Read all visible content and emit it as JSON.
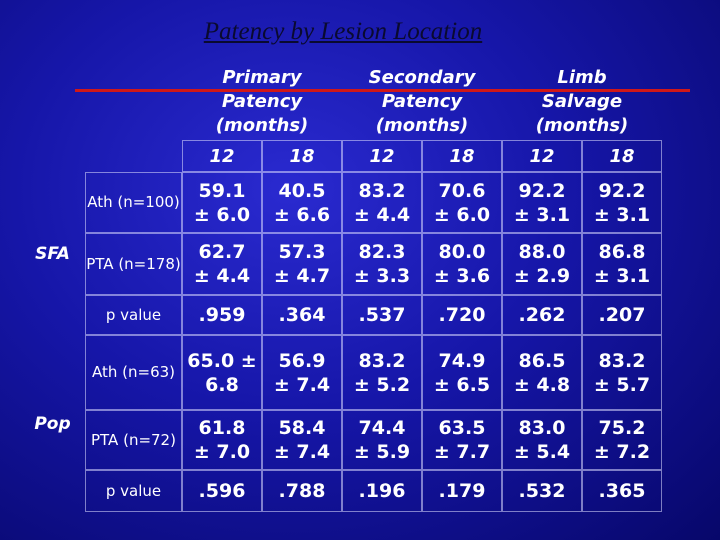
{
  "title": "Patency by Lesion Location",
  "table": {
    "group_headers": [
      "Primary Patency (months)",
      "Secondary Patency (months)",
      "Limb Salvage (months)"
    ],
    "sub_headers": [
      "12",
      "18",
      "12",
      "18",
      "12",
      "18"
    ],
    "sections": [
      {
        "label": "SFA",
        "rows": [
          {
            "label": "Ath (n=100)",
            "cells": [
              "59.1 ± 6.0",
              "40.5 ± 6.6",
              "83.2 ± 4.4",
              "70.6 ± 6.0",
              "92.2 ± 3.1",
              "92.2 ± 3.1"
            ]
          },
          {
            "label": "PTA (n=178)",
            "cells": [
              "62.7 ± 4.4",
              "57.3 ± 4.7",
              "82.3 ± 3.3",
              "80.0 ± 3.6",
              "88.0 ± 2.9",
              "86.8 ± 3.1"
            ]
          },
          {
            "label": "p value",
            "cells": [
              ".959",
              ".364",
              ".537",
              ".720",
              ".262",
              ".207"
            ]
          }
        ]
      },
      {
        "label": "Pop",
        "rows": [
          {
            "label": "Ath (n=63)",
            "cells": [
              "65.0 ± 6.8",
              "56.9 ± 7.4",
              "83.2 ± 5.2",
              "74.9 ± 6.5",
              "86.5 ± 4.8",
              "83.2 ± 5.7"
            ]
          },
          {
            "label": "PTA (n=72)",
            "cells": [
              "61.8 ± 7.0",
              "58.4 ± 7.4",
              "74.4 ± 5.9",
              "63.5 ± 7.7",
              "83.0 ± 5.4",
              "75.2 ± 7.2"
            ]
          },
          {
            "label": "p value",
            "cells": [
              ".596",
              ".788",
              ".196",
              ".179",
              ".532",
              ".365"
            ]
          }
        ]
      }
    ]
  }
}
